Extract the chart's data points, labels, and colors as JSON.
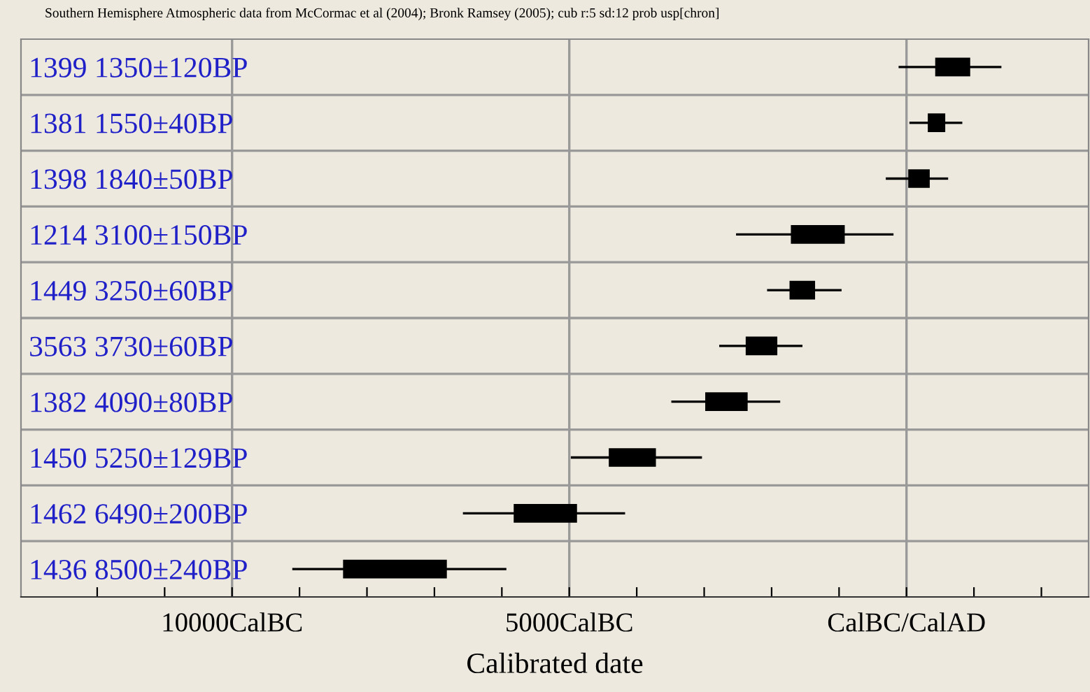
{
  "chart_data": {
    "type": "box",
    "orientation": "horizontal",
    "title": "Southern Hemisphere Atmospheric data from McCormac et al (2004); Bronk Ramsey (2005); cub r:5 sd:12 prob usp[chron]",
    "xlabel": "Calibrated date",
    "categories": [
      "1399 1350±120BP",
      "1381 1550±40BP",
      "1398 1840±50BP",
      "1214 3100±150BP",
      "1449 3250±60BP",
      "3563 3730±60BP",
      "1382 4090±80BP",
      "1450 5250±129BP",
      "1462 6490±200BP",
      "1436 8500±240BP"
    ],
    "boxes": [
      {
        "low": -100,
        "q1": 440,
        "median": 620,
        "q3": 930,
        "high": 1390
      },
      {
        "low": 60,
        "q1": 330,
        "median": 500,
        "q3": 560,
        "high": 810
      },
      {
        "low": -290,
        "q1": 40,
        "median": 150,
        "q3": 330,
        "high": 600
      },
      {
        "low": -2510,
        "q1": -1700,
        "median": -1390,
        "q3": -930,
        "high": -210
      },
      {
        "low": -2050,
        "q1": -1720,
        "median": -1540,
        "q3": -1370,
        "high": -980
      },
      {
        "low": -2760,
        "q1": -2370,
        "median": -2120,
        "q3": -1930,
        "high": -1560
      },
      {
        "low": -3470,
        "q1": -2970,
        "median": -2610,
        "q3": -2370,
        "high": -1890
      },
      {
        "low": -4960,
        "q1": -4400,
        "median": -4050,
        "q3": -3730,
        "high": -3050
      },
      {
        "low": -6560,
        "q1": -5810,
        "median": -5460,
        "q3": -4900,
        "high": -4190
      },
      {
        "low": -9090,
        "q1": -8340,
        "median": -7570,
        "q3": -6830,
        "high": -5950
      }
    ],
    "color": "#000000",
    "xlim": [
      -13130,
      2700
    ],
    "xticks": [
      {
        "value": -12000,
        "label": null
      },
      {
        "value": -11000,
        "label": null
      },
      {
        "value": -10000,
        "label": "10000CalBC"
      },
      {
        "value": -9000,
        "label": null
      },
      {
        "value": -8000,
        "label": null
      },
      {
        "value": -7000,
        "label": null
      },
      {
        "value": -6000,
        "label": null
      },
      {
        "value": -5000,
        "label": "5000CalBC"
      },
      {
        "value": -4000,
        "label": null
      },
      {
        "value": -3000,
        "label": null
      },
      {
        "value": -2000,
        "label": null
      },
      {
        "value": -1000,
        "label": null
      },
      {
        "value": 0,
        "label": "CalBC/CalAD"
      },
      {
        "value": 1000,
        "label": null
      },
      {
        "value": 2000,
        "label": null
      }
    ],
    "grid": true
  }
}
